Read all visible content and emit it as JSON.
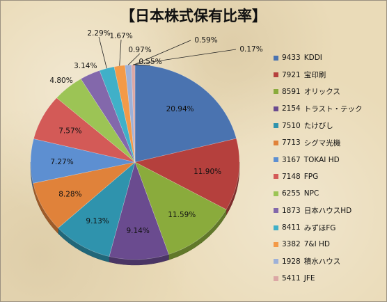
{
  "chart_data": {
    "type": "pie",
    "title": "【日本株式保有比率】",
    "legend_position": "right",
    "slices": [
      {
        "code": "9433",
        "label": "KDDI",
        "value": 20.94,
        "value_label": "20.94%",
        "color": "#4a73b0"
      },
      {
        "code": "7921",
        "label": "宝印刷",
        "value": 11.9,
        "value_label": "11.90%",
        "color": "#b5403d"
      },
      {
        "code": "8591",
        "label": "オリックス",
        "value": 11.59,
        "value_label": "11.59%",
        "color": "#8aab3c"
      },
      {
        "code": "2154",
        "label": "トラスト・テック",
        "value": 9.14,
        "value_label": "9.14%",
        "color": "#6a4b8f"
      },
      {
        "code": "7510",
        "label": "たけびし",
        "value": 9.13,
        "value_label": "9.13%",
        "color": "#2f93ad"
      },
      {
        "code": "7713",
        "label": "シグマ光機",
        "value": 8.28,
        "value_label": "8.28%",
        "color": "#e0823a"
      },
      {
        "code": "3167",
        "label": "TOKAI HD",
        "value": 7.27,
        "value_label": "7.27%",
        "color": "#5d8fd1"
      },
      {
        "code": "7148",
        "label": "FPG",
        "value": 7.57,
        "value_label": "7.57%",
        "color": "#d35a57"
      },
      {
        "code": "6255",
        "label": "NPC",
        "value": 4.8,
        "value_label": "4.80%",
        "color": "#9cc455"
      },
      {
        "code": "1873",
        "label": "日本ハウスHD",
        "value": 3.14,
        "value_label": "3.14%",
        "color": "#8368ab"
      },
      {
        "code": "8411",
        "label": "みずほFG",
        "value": 2.29,
        "value_label": "2.29%",
        "color": "#40b0c8"
      },
      {
        "code": "3382",
        "label": "7&I HD",
        "value": 1.67,
        "value_label": "1.67%",
        "color": "#f39a48"
      },
      {
        "code": "1928",
        "label": "積水ハウス",
        "value": 0.97,
        "value_label": "0.97%",
        "color": "#9eb1d8"
      },
      {
        "code": "5411",
        "label": "JFE",
        "value": 0.55,
        "value_label": "0.55%",
        "color": "#dba7a5"
      }
    ],
    "extra_labels": [
      "0.59%",
      "0.17%"
    ]
  }
}
